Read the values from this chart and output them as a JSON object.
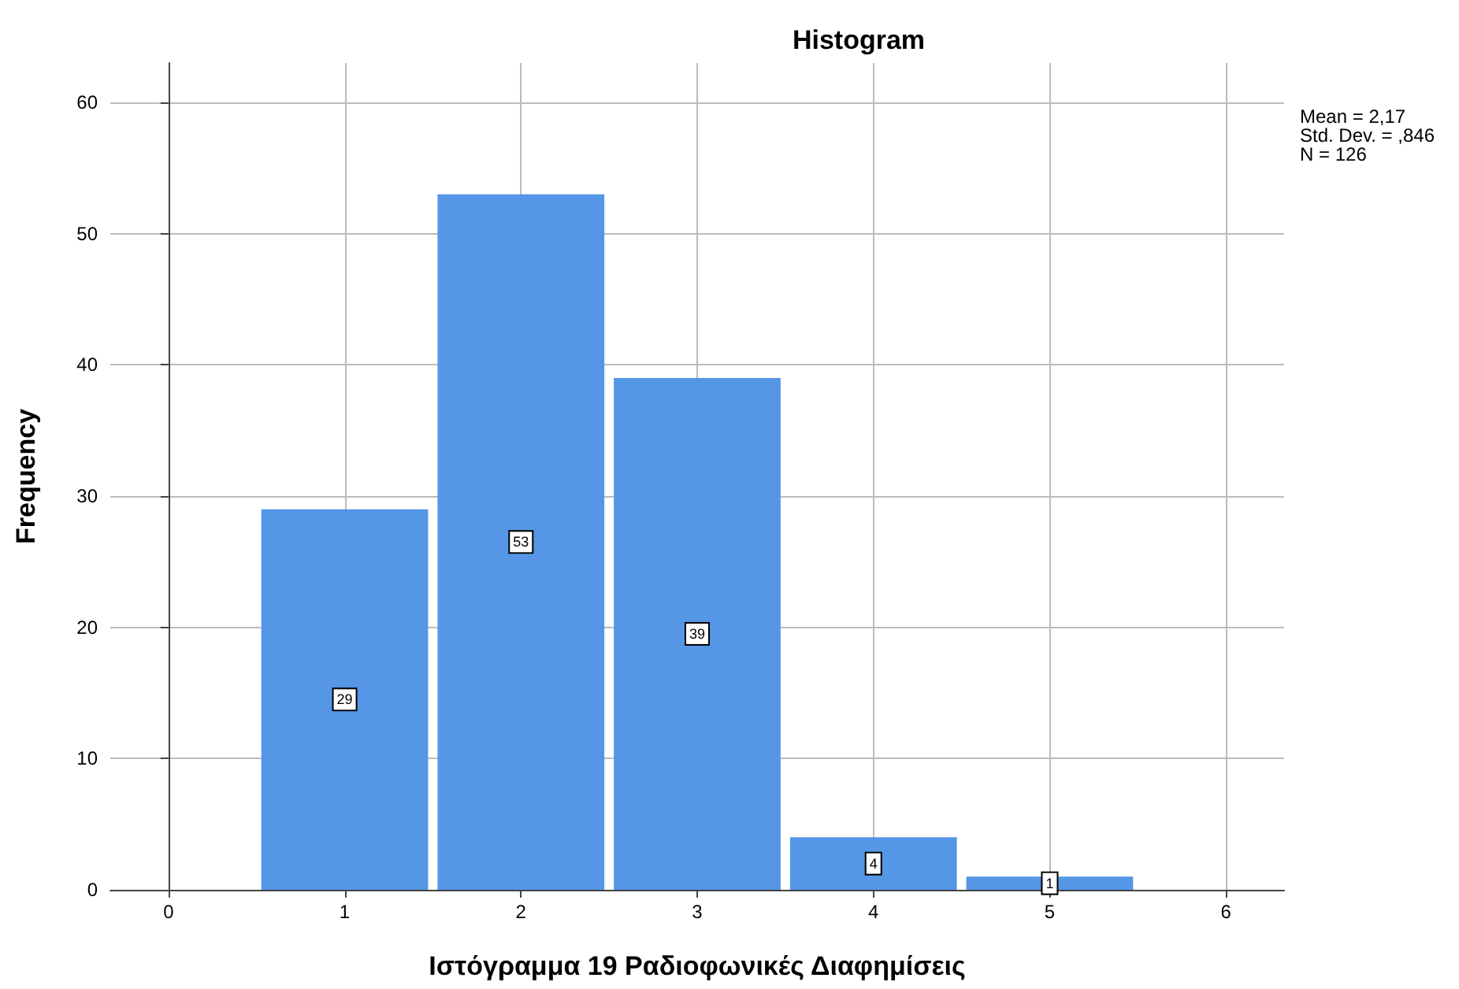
{
  "chart_data": {
    "type": "histogram",
    "title": "Histogram",
    "xlabel": "Ιστόγραμμα 19 Ραδιοφωνικές Διαφημίσεις",
    "ylabel": "Frequency",
    "bins": [
      0.5,
      1.5,
      2.5,
      3.5,
      4.5,
      5.5
    ],
    "values": [
      29,
      53,
      39,
      4,
      1
    ],
    "color": "#5596e6",
    "xlim": [
      -0.33,
      6.33
    ],
    "xticks": [
      0,
      1,
      2,
      3,
      4,
      5,
      6
    ],
    "ylim": [
      0,
      63
    ],
    "yticks": [
      0,
      10,
      20,
      30,
      40,
      50,
      60
    ],
    "grid": true,
    "data_labels": true,
    "annotations": [
      "Mean = 2,17",
      "Std. Dev. = ,846",
      "N = 126"
    ]
  }
}
